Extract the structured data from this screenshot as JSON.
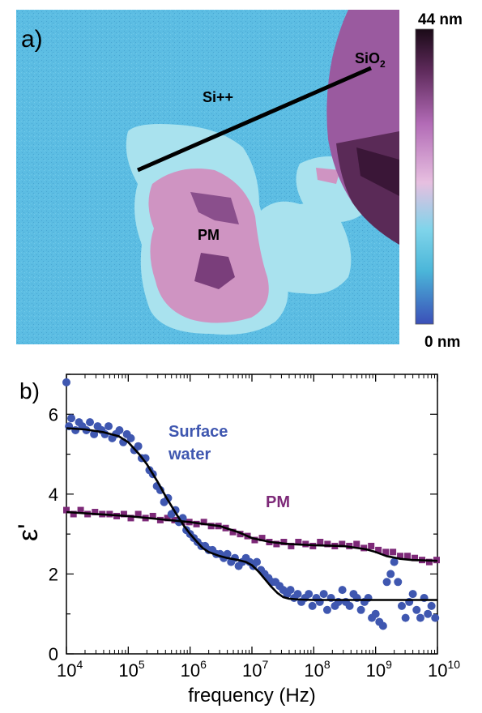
{
  "panel_a": {
    "label": "a)",
    "regions": {
      "silicon": "Si++",
      "oxide": "SiO",
      "oxide_subscript": "2",
      "membrane": "PM"
    },
    "colorbar": {
      "max_label": "44 nm",
      "min_label": "0 nm",
      "range_nm": [
        0,
        44
      ]
    },
    "colors": {
      "substrate": "#5cbde3",
      "membrane": "#cf94c2",
      "membrane_dark": "#8a4f8c",
      "oxide": "#9a5a9f",
      "oxide_dark": "#4a2347",
      "profile_line": "#000000"
    }
  },
  "panel_b": {
    "label": "b)",
    "annotations": {
      "water_line1": "Surface",
      "water_line2": "water",
      "pm": "PM"
    },
    "colors": {
      "water": "#3f57b0",
      "pm": "#7d2978",
      "fit": "#000000"
    }
  },
  "chart_data": {
    "type": "scatter",
    "xlabel": "frequency (Hz)",
    "ylabel": "ε'",
    "xscale": "log",
    "xlim": [
      10000,
      10000000000
    ],
    "ylim": [
      0,
      7
    ],
    "x_ticks": [
      {
        "base": "10",
        "exp": "4"
      },
      {
        "base": "10",
        "exp": "5"
      },
      {
        "base": "10",
        "exp": "6"
      },
      {
        "base": "10",
        "exp": "7"
      },
      {
        "base": "10",
        "exp": "8"
      },
      {
        "base": "10",
        "exp": "9"
      },
      {
        "base": "10",
        "exp": "10"
      }
    ],
    "y_ticks": [
      "0",
      "2",
      "4",
      "6"
    ],
    "y_tick_values": [
      0,
      2,
      4,
      6
    ],
    "series": [
      {
        "name": "Surface water",
        "marker": "circle",
        "x": [
          10000,
          11000,
          12000,
          14000,
          16000,
          18000,
          21000,
          24000,
          28000,
          32000,
          37000,
          42000,
          48000,
          55000,
          63000,
          72000,
          83000,
          95000,
          110000,
          125000,
          145000,
          165000,
          190000,
          220000,
          250000,
          290000,
          330000,
          380000,
          440000,
          500000,
          580000,
          660000,
          760000,
          870000,
          1000000,
          1150000,
          1320000,
          1520000,
          1750000,
          2000000,
          2300000,
          2650000,
          3050000,
          3500000,
          4000000,
          4600000,
          5300000,
          6100000,
          7000000,
          8000000,
          9200000,
          10500000,
          12000000,
          14000000,
          16000000,
          18500000,
          21000000,
          24000000,
          28000000,
          32000000,
          37000000,
          42000000,
          48000000,
          55000000,
          63000000,
          72000000,
          83000000,
          95000000,
          110000000,
          125000000,
          145000000,
          165000000,
          190000000,
          220000000,
          250000000,
          290000000,
          330000000,
          380000000,
          440000000,
          500000000,
          580000000,
          660000000,
          760000000,
          870000000,
          1000000000,
          1150000000,
          1320000000,
          1520000000,
          1750000000,
          2000000000,
          2300000000,
          2650000000,
          3050000000,
          3500000000,
          4000000000,
          4600000000,
          5300000000,
          6100000000,
          7000000000,
          8000000000,
          9200000000
        ],
        "y": [
          6.8,
          5.7,
          5.9,
          5.6,
          5.8,
          5.7,
          5.6,
          5.8,
          5.5,
          5.7,
          5.6,
          5.5,
          5.7,
          5.4,
          5.5,
          5.6,
          5.3,
          5.5,
          5.4,
          5.1,
          5.2,
          4.9,
          4.9,
          4.6,
          4.5,
          4.2,
          4.1,
          3.8,
          3.9,
          3.5,
          3.6,
          3.3,
          3.4,
          3.1,
          3.0,
          2.9,
          2.8,
          2.7,
          2.7,
          2.6,
          2.6,
          2.5,
          2.5,
          2.4,
          2.5,
          2.3,
          2.4,
          2.2,
          2.3,
          2.4,
          2.3,
          2.2,
          2.3,
          2.1,
          2.0,
          1.9,
          1.8,
          1.8,
          1.7,
          1.6,
          1.5,
          1.6,
          1.4,
          1.5,
          1.3,
          1.4,
          1.5,
          1.2,
          1.4,
          1.3,
          1.5,
          1.1,
          1.4,
          1.2,
          1.3,
          1.6,
          1.3,
          1.2,
          1.5,
          1.4,
          1.1,
          1.3,
          1.4,
          0.9,
          1.0,
          0.8,
          0.7,
          1.8,
          2.0,
          2.3,
          1.8,
          1.2,
          0.9,
          1.3,
          1.5,
          1.1,
          0.9,
          1.4,
          1.0,
          1.2,
          0.9
        ],
        "fit_x": [
          10000,
          20000,
          40000,
          70000,
          100000,
          150000,
          200000,
          300000,
          400000,
          600000,
          800000,
          1000000,
          1300000,
          1600000,
          2000000,
          3000000,
          4000000,
          6000000,
          8000000,
          10000000,
          13000000,
          16000000,
          20000000,
          26000000,
          32000000,
          40000000,
          60000000,
          100000000,
          200000000,
          500000000,
          1000000000,
          10000000000
        ],
        "fit_y": [
          5.65,
          5.62,
          5.55,
          5.45,
          5.3,
          5.0,
          4.75,
          4.3,
          3.95,
          3.5,
          3.2,
          3.0,
          2.8,
          2.65,
          2.55,
          2.45,
          2.4,
          2.35,
          2.3,
          2.22,
          2.05,
          1.88,
          1.7,
          1.52,
          1.42,
          1.38,
          1.36,
          1.35,
          1.35,
          1.35,
          1.35,
          1.35
        ]
      },
      {
        "name": "PM",
        "marker": "square",
        "x": [
          10000,
          13000,
          17000,
          22000,
          29000,
          38000,
          50000,
          65000,
          85000,
          110000,
          145000,
          190000,
          250000,
          330000,
          430000,
          560000,
          740000,
          970000,
          1270000,
          1670000,
          2190000,
          2870000,
          3760000,
          4930000,
          6460000,
          8480000,
          11100000,
          14600000,
          19100000,
          25000000,
          32800000,
          43000000,
          56400000,
          73900000,
          96900000,
          127000000,
          167000000,
          219000000,
          287000000,
          376000000,
          493000000,
          646000000,
          848000000,
          1110000000,
          1460000000,
          1910000000,
          2500000000,
          3280000000,
          4300000000,
          5640000000,
          7390000000,
          9690000000
        ],
        "y": [
          3.6,
          3.5,
          3.6,
          3.5,
          3.55,
          3.5,
          3.5,
          3.45,
          3.5,
          3.4,
          3.5,
          3.4,
          3.45,
          3.35,
          3.4,
          3.35,
          3.3,
          3.3,
          3.25,
          3.3,
          3.2,
          3.2,
          3.15,
          3.05,
          3.0,
          2.95,
          2.85,
          2.9,
          2.8,
          2.75,
          2.8,
          2.7,
          2.8,
          2.75,
          2.7,
          2.8,
          2.75,
          2.7,
          2.75,
          2.7,
          2.75,
          2.65,
          2.7,
          2.6,
          2.55,
          2.55,
          2.45,
          2.45,
          2.4,
          2.35,
          2.3,
          2.35
        ],
        "fit_x": [
          10000,
          100000,
          1000000,
          3000000,
          6000000,
          10000000,
          20000000,
          40000000,
          100000000,
          300000000,
          700000000,
          1000000000,
          1500000000,
          2500000000,
          4000000000,
          10000000000
        ],
        "fit_y": [
          3.55,
          3.45,
          3.3,
          3.2,
          3.05,
          2.9,
          2.8,
          2.75,
          2.72,
          2.7,
          2.62,
          2.55,
          2.45,
          2.38,
          2.35,
          2.33
        ]
      }
    ]
  }
}
